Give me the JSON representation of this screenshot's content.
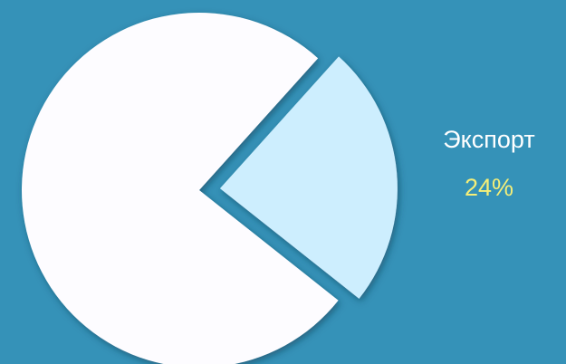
{
  "chart_data": {
    "type": "pie",
    "categories": [
      "Экспорт",
      null
    ],
    "values": [
      24,
      76
    ],
    "value_labels": [
      "24%",
      null
    ],
    "colors": [
      "#cdeefe",
      "#fdfcff"
    ],
    "label_color": "#ffffff",
    "value_label_color": "#f5ef78"
  }
}
